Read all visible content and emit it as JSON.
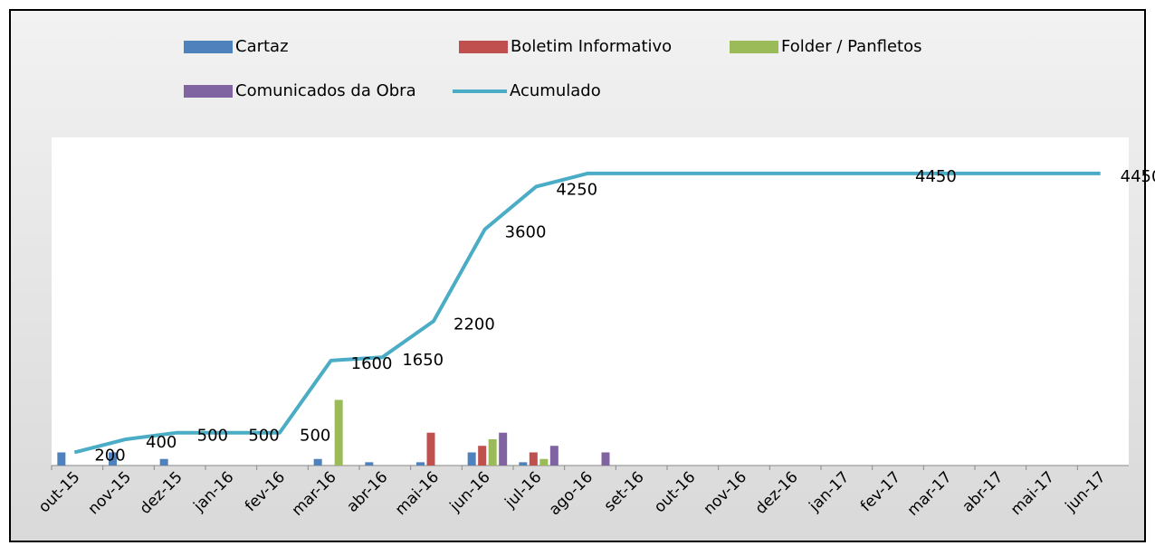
{
  "chart_data": {
    "type": "bar_line",
    "categories": [
      "out-15",
      "nov-15",
      "dez-15",
      "jan-16",
      "fev-16",
      "mar-16",
      "abr-16",
      "mai-16",
      "jun-16",
      "jul-16",
      "ago-16",
      "set-16",
      "out-16",
      "nov-16",
      "dez-16",
      "jan-17",
      "fev-17",
      "mar-17",
      "abr-17",
      "mai-17",
      "jun-17"
    ],
    "series": [
      {
        "name": "Cartaz",
        "type": "bar",
        "color": "#4f81bd",
        "values": [
          200,
          200,
          100,
          0,
          0,
          100,
          50,
          50,
          200,
          50,
          0,
          0,
          0,
          0,
          0,
          0,
          0,
          0,
          0,
          0,
          0
        ]
      },
      {
        "name": "Boletim Informativo",
        "type": "bar",
        "color": "#c0504d",
        "values": [
          0,
          0,
          0,
          0,
          0,
          0,
          0,
          500,
          300,
          200,
          0,
          0,
          0,
          0,
          0,
          0,
          0,
          0,
          0,
          0,
          0
        ]
      },
      {
        "name": "Folder / Panfletos",
        "type": "bar",
        "color": "#9bbb59",
        "values": [
          0,
          0,
          0,
          0,
          0,
          1000,
          0,
          0,
          400,
          100,
          0,
          0,
          0,
          0,
          0,
          0,
          0,
          0,
          0,
          0,
          0
        ]
      },
      {
        "name": "Comunicados da Obra",
        "type": "bar",
        "color": "#8064a2",
        "values": [
          0,
          0,
          0,
          0,
          0,
          0,
          0,
          0,
          500,
          300,
          200,
          0,
          0,
          0,
          0,
          0,
          0,
          0,
          0,
          0,
          0
        ]
      },
      {
        "name": "Acumulado",
        "type": "line",
        "color": "#4bacc6",
        "values": [
          200,
          400,
          500,
          500,
          500,
          1600,
          1650,
          2200,
          3600,
          4250,
          4450,
          4450,
          4450,
          4450,
          4450,
          4450,
          4450,
          4450,
          4450,
          4450,
          4450
        ],
        "value_labels": [
          "200",
          "400",
          "500",
          "500",
          "500",
          "1600",
          "1650",
          "2200",
          "3600",
          "4250",
          null,
          null,
          null,
          null,
          null,
          null,
          "4450",
          null,
          null,
          null,
          "4450"
        ]
      }
    ],
    "ylim": [
      0,
      5000
    ],
    "legend": "top"
  }
}
